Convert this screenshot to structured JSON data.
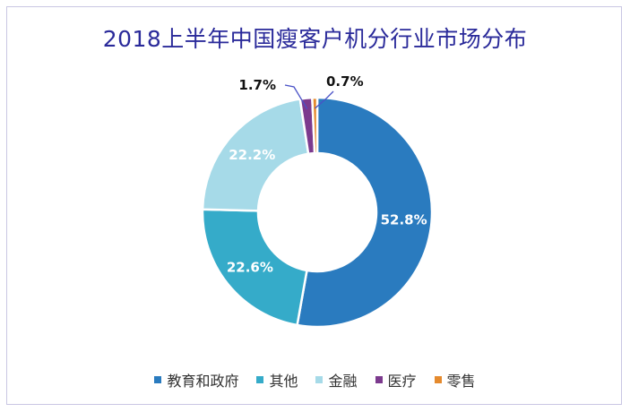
{
  "chart_data": {
    "type": "pie",
    "title": "2018上半年中国瘦客户机分行业市场分布",
    "categories": [
      "教育和政府",
      "其他",
      "金融",
      "医疗",
      "零售"
    ],
    "values": [
      52.8,
      22.6,
      22.2,
      1.7,
      0.7
    ],
    "labels": [
      "52.8%",
      "22.6%",
      "22.2%",
      "1.7%",
      "0.7%"
    ],
    "colors": [
      "#2a7bbf",
      "#35abc9",
      "#a6dae8",
      "#7c3a8e",
      "#e58a2e"
    ],
    "donut": true,
    "legend": "bottom"
  }
}
